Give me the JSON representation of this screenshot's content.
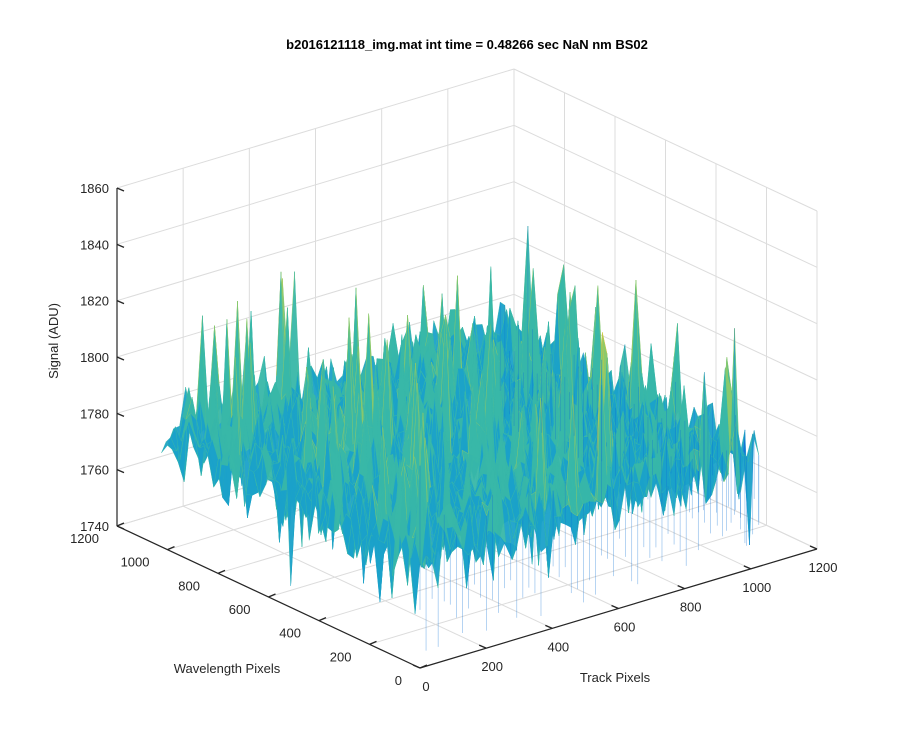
{
  "chart_data": {
    "type": "surface",
    "title": "b2016121118_img.mat int time = 0.48266 sec  NaN nm BS02",
    "xlabel": "Track Pixels",
    "ylabel": "Wavelength Pixels",
    "zlabel": "Signal (ADU)",
    "xlim": [
      0,
      1200
    ],
    "ylim": [
      0,
      1200
    ],
    "zlim": [
      1740,
      1860
    ],
    "x_ticks": [
      "0",
      "200",
      "400",
      "600",
      "800",
      "1000",
      "1200"
    ],
    "y_ticks": [
      "0",
      "200",
      "400",
      "600",
      "800",
      "1000",
      "1200"
    ],
    "z_ticks": [
      "1740",
      "1760",
      "1780",
      "1800",
      "1820",
      "1840",
      "1860"
    ],
    "grid": true,
    "surface": {
      "x_range": [
        0,
        1024
      ],
      "y_range": [
        0,
        1024
      ],
      "mean_signal": 1780,
      "noise_range": [
        1745,
        1850
      ],
      "colormap": [
        "#0b6fd6",
        "#1aa1c9",
        "#38b7a8",
        "#8cc96a",
        "#d9c640"
      ]
    }
  }
}
